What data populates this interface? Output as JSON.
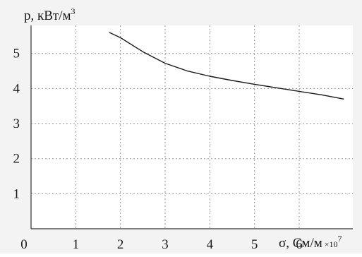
{
  "chart_data": {
    "type": "line",
    "ylabel": "p, кВт/м",
    "ylabel_exp": "3",
    "xlabel": "σ, См/м",
    "xlabel_multiplier": "×10",
    "xlabel_multiplier_exp": "7",
    "xlim": [
      0,
      7.2
    ],
    "ylim": [
      0,
      5.8
    ],
    "x_ticks": [
      0,
      1,
      2,
      3,
      4,
      5,
      6
    ],
    "y_ticks": [
      1,
      2,
      3,
      4,
      5
    ],
    "grid": true,
    "series": [
      {
        "x": [
          1.75,
          2.0,
          2.5,
          3.0,
          3.5,
          4.0,
          4.5,
          5.0,
          5.5,
          6.0,
          6.5,
          7.0
        ],
        "y": [
          5.6,
          5.45,
          5.05,
          4.72,
          4.5,
          4.35,
          4.23,
          4.12,
          4.02,
          3.92,
          3.82,
          3.7
        ]
      }
    ]
  }
}
